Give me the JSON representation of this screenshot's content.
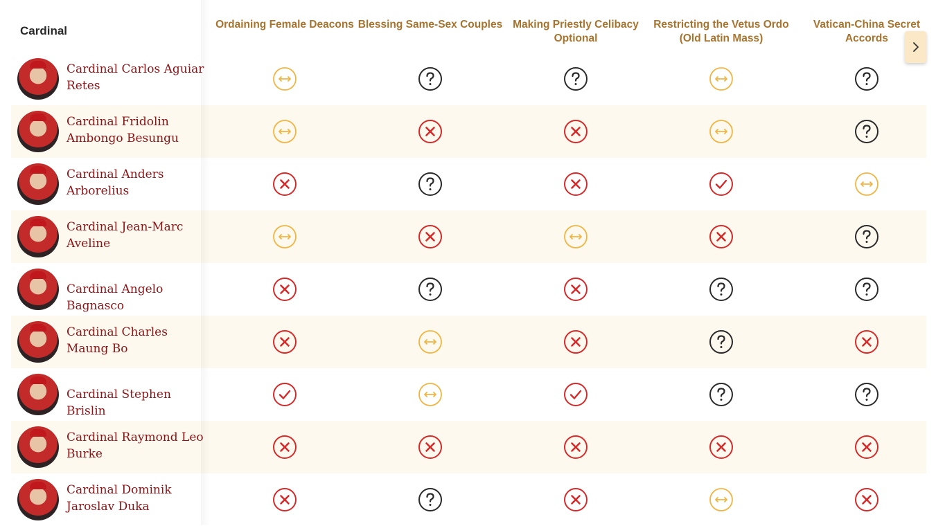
{
  "header": {
    "cardinal_label": "Cardinal",
    "columns": [
      "Ordaining Female Deacons",
      "Blessing Same-Sex Couples",
      "Making Priestly Celibacy Optional",
      "Restricting the Vetus Ordo (Old Latin Mass)",
      "Vatican-China Secret Accords"
    ]
  },
  "legend_icons": {
    "yes": "check-icon",
    "no": "x-icon",
    "unknown": "question-icon",
    "mixed": "arrows-icon"
  },
  "colors": {
    "yes": "#d42a2a",
    "no": "#d42a2a",
    "unknown": "#2a2a2a",
    "mixed": "#f0b542",
    "header_text": "#a8742d",
    "name_text": "#8c1316",
    "alt_row": "#fdf9ee"
  },
  "rows": [
    {
      "name": "Cardinal Carlos Aguiar Retes",
      "positions": [
        "mixed",
        "unknown",
        "unknown",
        "mixed",
        "unknown"
      ]
    },
    {
      "name": "Cardinal Fridolin Ambongo Besungu",
      "positions": [
        "mixed",
        "no",
        "no",
        "mixed",
        "unknown"
      ]
    },
    {
      "name": "Cardinal Anders Arborelius",
      "positions": [
        "no",
        "unknown",
        "no",
        "yes",
        "mixed"
      ]
    },
    {
      "name": "Cardinal Jean-Marc Aveline",
      "positions": [
        "mixed",
        "no",
        "mixed",
        "no",
        "unknown"
      ]
    },
    {
      "name": "Cardinal Angelo Bagnasco",
      "positions": [
        "no",
        "unknown",
        "no",
        "unknown",
        "unknown"
      ]
    },
    {
      "name": "Cardinal Charles Maung Bo",
      "positions": [
        "no",
        "mixed",
        "no",
        "unknown",
        "no"
      ]
    },
    {
      "name": "Cardinal Stephen Brislin",
      "positions": [
        "yes",
        "mixed",
        "yes",
        "unknown",
        "unknown"
      ]
    },
    {
      "name": "Cardinal Raymond Leo Burke",
      "positions": [
        "no",
        "no",
        "no",
        "no",
        "no"
      ]
    },
    {
      "name": "Cardinal Dominik Jaroslav Duka",
      "positions": [
        "no",
        "unknown",
        "no",
        "mixed",
        "no"
      ]
    }
  ],
  "scroll_button": {
    "icon": "chevron-right-icon"
  }
}
